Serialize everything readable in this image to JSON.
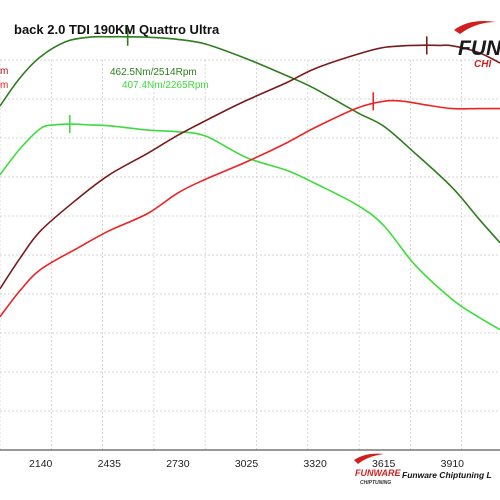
{
  "header": {
    "title": "back 2.0 TDI 190KM Quattro Ultra",
    "left_labels": [
      "m",
      "m"
    ],
    "peak_tuned": "462.5Nm/2514Rpm",
    "peak_stock": "407.4Nm/2265Rpm"
  },
  "logo": {
    "text": "FUNW",
    "subtext": "CHI",
    "small_text": "FUNWARE",
    "small_subtext": "CHIPTUNING"
  },
  "footer": {
    "company": "Funware Chiptuning L"
  },
  "colors": {
    "torque_tuned": "#2e7d1e",
    "torque_stock": "#3ddc3d",
    "power_tuned": "#7a1a1a",
    "power_stock": "#ee2222",
    "grid": "#c8c8c8",
    "logo_red": "#d11f1f"
  },
  "chart_data": {
    "type": "line",
    "x_ticks": [
      "2140",
      "2435",
      "2730",
      "3025",
      "3320",
      "3615",
      "3910"
    ],
    "xlim": [
      1965,
      4115
    ],
    "ylim": [
      0,
      100
    ],
    "grid": true,
    "series": [
      {
        "key": "torque_tuned",
        "x": [
          1965,
          2050,
          2140,
          2250,
          2350,
          2435,
          2514,
          2600,
          2730,
          2850,
          3025,
          3200,
          3320,
          3500,
          3615,
          3750,
          3910,
          4020,
          4115
        ],
        "y": [
          80,
          86.5,
          91.5,
          95,
          96,
          96.1,
          96.1,
          96,
          95.5,
          94.4,
          91,
          87,
          84,
          78.5,
          75.3,
          69,
          61,
          54,
          48.2
        ]
      },
      {
        "key": "torque_stock",
        "x": [
          1965,
          2050,
          2140,
          2200,
          2265,
          2350,
          2435,
          2600,
          2730,
          2850,
          3025,
          3200,
          3320,
          3500,
          3615,
          3750,
          3910,
          4020,
          4115
        ],
        "y": [
          64,
          70,
          74.8,
          75.6,
          75.8,
          75.6,
          75.4,
          74.4,
          74,
          73,
          68,
          65,
          62,
          57,
          52.2,
          43,
          35,
          31,
          28
        ]
      },
      {
        "key": "power_tuned",
        "x": [
          1965,
          2050,
          2140,
          2300,
          2435,
          2600,
          2730,
          2900,
          3025,
          3200,
          3320,
          3500,
          3615,
          3750,
          3850,
          3910,
          4020,
          4115
        ],
        "y": [
          37.5,
          44.5,
          51,
          58.5,
          64,
          69,
          73.2,
          78,
          81.3,
          85.5,
          88.7,
          92,
          93.6,
          94.1,
          94.1,
          94,
          92.5,
          90
        ]
      },
      {
        "key": "power_stock",
        "x": [
          1965,
          2050,
          2140,
          2300,
          2435,
          2600,
          2730,
          2850,
          3025,
          3200,
          3320,
          3500,
          3615,
          3700,
          3800,
          3910,
          4020,
          4115
        ],
        "y": [
          31,
          37,
          42,
          47,
          51,
          55,
          59.8,
          63,
          67,
          71.5,
          75,
          79.5,
          81.1,
          81.1,
          80.2,
          79.4,
          79.4,
          79.4
        ]
      }
    ],
    "peak_markers": [
      {
        "series": "torque_tuned",
        "x": 2514,
        "y": 96.1
      },
      {
        "series": "torque_stock",
        "x": 2265,
        "y": 75.8
      },
      {
        "series": "power_tuned",
        "x": 3800,
        "y": 94.1
      },
      {
        "series": "power_stock",
        "x": 3570,
        "y": 81.1
      }
    ]
  }
}
